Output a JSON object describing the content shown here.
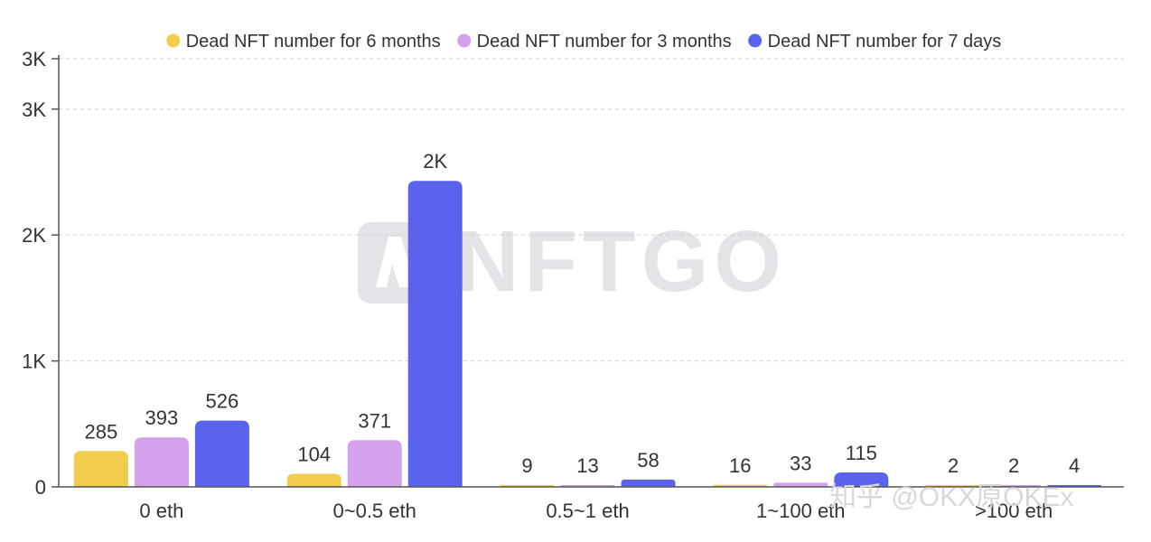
{
  "chart_data": {
    "type": "bar",
    "categories": [
      "0 eth",
      "0~0.5 eth",
      "0.5~1 eth",
      "1~100 eth",
      ">100 eth"
    ],
    "series": [
      {
        "name": "Dead NFT number for 6 months",
        "color": "#f2cd4d",
        "values": [
          285,
          104,
          9,
          16,
          2
        ],
        "labels": [
          "285",
          "104",
          "9",
          "16",
          "2"
        ]
      },
      {
        "name": "Dead NFT number for 3 months",
        "color": "#d4a1ec",
        "values": [
          393,
          371,
          13,
          33,
          2
        ],
        "labels": [
          "393",
          "371",
          "13",
          "33",
          "2"
        ]
      },
      {
        "name": "Dead NFT number for 7 days",
        "color": "#5b63ed",
        "values": [
          526,
          2430,
          58,
          115,
          4
        ],
        "labels": [
          "526",
          "2K",
          "58",
          "115",
          "4"
        ]
      }
    ],
    "ylim": [
      0,
      3400
    ],
    "yticks": [
      {
        "value": 0,
        "label": "0"
      },
      {
        "value": 1000,
        "label": "1K"
      },
      {
        "value": 2000,
        "label": "2K"
      },
      {
        "value": 3000,
        "label": "3K"
      },
      {
        "value": 3400,
        "label": "3K"
      }
    ],
    "legend_position": "top-center",
    "grid": true
  },
  "watermark": {
    "brand": "NFTGO",
    "credit": "知乎 @OKX原OKEx"
  }
}
